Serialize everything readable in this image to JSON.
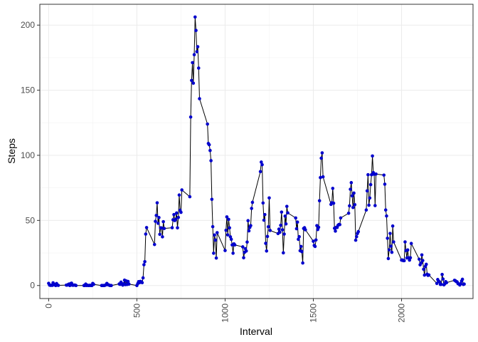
{
  "chart_data": {
    "type": "line",
    "title": "",
    "xlabel": "Interval",
    "ylabel": "Steps",
    "xlim": [
      -50,
      2405
    ],
    "ylim": [
      -10,
      216
    ],
    "x_ticks": [
      0,
      500,
      1000,
      1500,
      2000
    ],
    "y_ticks": [
      0,
      50,
      100,
      150,
      200
    ],
    "grid": true,
    "line_color": "#000000",
    "point_color": "#0000cd",
    "series": [
      {
        "x": [
          0,
          5,
          10,
          15,
          20,
          25,
          30,
          35,
          40,
          45,
          50,
          55,
          100,
          105,
          110,
          115,
          120,
          125,
          130,
          135,
          140,
          145,
          150,
          155,
          200,
          205,
          210,
          215,
          220,
          225,
          230,
          235,
          240,
          245,
          250,
          255,
          300,
          305,
          310,
          315,
          320,
          325,
          330,
          335,
          340,
          345,
          350,
          355,
          400,
          405,
          410,
          415,
          420,
          425,
          430,
          435,
          440,
          445,
          450,
          455,
          500,
          505,
          510,
          515,
          520,
          525,
          530,
          535,
          540,
          545,
          550,
          555,
          600,
          605,
          610,
          615,
          620,
          625,
          630,
          635,
          640,
          645,
          650,
          655,
          700,
          705,
          710,
          715,
          720,
          725,
          730,
          735,
          740,
          745,
          750,
          755,
          800,
          805,
          810,
          815,
          820,
          825,
          830,
          835,
          840,
          845,
          850,
          855,
          900,
          905,
          910,
          915,
          920,
          925,
          930,
          935,
          940,
          945,
          950,
          955,
          1000,
          1005,
          1010,
          1015,
          1020,
          1025,
          1030,
          1035,
          1040,
          1045,
          1050,
          1055,
          1100,
          1105,
          1110,
          1115,
          1120,
          1125,
          1130,
          1135,
          1140,
          1145,
          1150,
          1155,
          1200,
          1205,
          1210,
          1215,
          1220,
          1225,
          1230,
          1235,
          1240,
          1245,
          1250,
          1255,
          1300,
          1305,
          1310,
          1315,
          1320,
          1325,
          1330,
          1335,
          1340,
          1345,
          1350,
          1355,
          1400,
          1405,
          1410,
          1415,
          1420,
          1425,
          1430,
          1435,
          1440,
          1445,
          1450,
          1455,
          1500,
          1505,
          1510,
          1515,
          1520,
          1525,
          1530,
          1535,
          1540,
          1545,
          1550,
          1555,
          1600,
          1605,
          1610,
          1615,
          1620,
          1625,
          1630,
          1635,
          1640,
          1645,
          1650,
          1655,
          1700,
          1705,
          1710,
          1715,
          1720,
          1725,
          1730,
          1735,
          1740,
          1745,
          1750,
          1755,
          1800,
          1805,
          1810,
          1815,
          1820,
          1825,
          1830,
          1835,
          1840,
          1845,
          1850,
          1855,
          1900,
          1905,
          1910,
          1915,
          1920,
          1925,
          1930,
          1935,
          1940,
          1945,
          1950,
          1955,
          2000,
          2005,
          2010,
          2015,
          2020,
          2025,
          2030,
          2035,
          2040,
          2045,
          2050,
          2055,
          2100,
          2105,
          2110,
          2115,
          2120,
          2125,
          2130,
          2135,
          2140,
          2145,
          2150,
          2155,
          2200,
          2205,
          2210,
          2215,
          2220,
          2225,
          2230,
          2235,
          2240,
          2245,
          2250,
          2255,
          2300,
          2305,
          2310,
          2315,
          2320,
          2325,
          2330,
          2335,
          2340,
          2345,
          2350,
          2355
        ],
        "y": [
          1.7,
          0.3,
          0.1,
          0.2,
          0.1,
          2.1,
          0.5,
          0.9,
          0.0,
          1.5,
          0.3,
          0.1,
          0.3,
          0.3,
          0.7,
          1.1,
          0.0,
          1.5,
          1.8,
          0.2,
          0.2,
          0.4,
          0.3,
          0.0,
          0.0,
          0.0,
          1.1,
          0.0,
          0.2,
          0.0,
          0.0,
          0.2,
          0.0,
          0.0,
          1.6,
          0.9,
          0.0,
          0.0,
          0.0,
          0.0,
          0.2,
          0.6,
          1.6,
          0.6,
          0.5,
          0.1,
          0.0,
          0.0,
          1.2,
          0.9,
          2.6,
          1.1,
          0.3,
          1.4,
          4.1,
          0.7,
          3.5,
          0.8,
          3.1,
          1.1,
          0.0,
          1.5,
          3.0,
          2.2,
          3.2,
          2.9,
          2.2,
          5.9,
          16.0,
          18.3,
          39.5,
          44.5,
          31.5,
          49.3,
          53.8,
          63.5,
          47.8,
          52.2,
          39.3,
          44.3,
          44.2,
          37.4,
          49.0,
          43.8,
          44.4,
          50.5,
          54.5,
          49.9,
          50.9,
          55.7,
          44.3,
          52.3,
          69.5,
          57.8,
          56.2,
          73.4,
          68.2,
          129.4,
          157.5,
          171.2,
          155.4,
          177.3,
          206.2,
          195.9,
          179.6,
          183.4,
          167.0,
          143.5,
          124.0,
          109.1,
          108.1,
          103.7,
          95.9,
          66.2,
          45.2,
          24.8,
          38.8,
          34.9,
          21.1,
          40.6,
          26.9,
          42.4,
          52.7,
          38.9,
          50.8,
          44.3,
          37.4,
          35.5,
          31.2,
          24.8,
          32.0,
          31.2,
          29.7,
          21.3,
          25.5,
          28.3,
          26.5,
          33.4,
          49.8,
          42.0,
          44.6,
          46.0,
          59.2,
          63.9,
          87.5,
          94.8,
          92.8,
          63.4,
          50.2,
          54.5,
          32.4,
          26.5,
          37.7,
          45.1,
          67.3,
          42.3,
          39.9,
          43.3,
          40.9,
          46.2,
          56.4,
          42.8,
          25.1,
          39.5,
          53.3,
          47.3,
          60.8,
          55.8,
          51.9,
          43.6,
          48.7,
          35.5,
          37.5,
          26.7,
          30.0,
          26.0,
          17.3,
          43.8,
          44.4,
          42.8,
          34.0,
          30.8,
          30.0,
          35.0,
          46.0,
          43.0,
          44.7,
          65.1,
          82.9,
          97.8,
          101.9,
          83.5,
          62.3,
          63.6,
          74.6,
          63.2,
          44.0,
          41.8,
          44.7,
          44.6,
          46.3,
          46.9,
          46.8,
          51.9,
          55.5,
          61.2,
          73.9,
          79.0,
          68.9,
          59.9,
          71.0,
          62.1,
          34.8,
          37.5,
          39.9,
          41.4,
          58.0,
          72.7,
          85.1,
          61.7,
          67.2,
          77.5,
          85.1,
          99.5,
          86.7,
          85.4,
          61.4,
          85.6,
          84.8,
          77.8,
          58.0,
          53.4,
          36.3,
          20.7,
          27.4,
          40.0,
          30.2,
          25.5,
          45.7,
          33.5,
          19.5,
          19.6,
          19.1,
          19.1,
          33.5,
          26.8,
          21.2,
          27.3,
          21.3,
          19.5,
          21.3,
          32.3,
          20.2,
          15.9,
          17.2,
          23.5,
          19.2,
          12.5,
          8.0,
          14.7,
          16.3,
          8.7,
          7.8,
          8.1,
          1.6,
          4.6,
          3.3,
          2.8,
          0.8,
          0.9,
          8.5,
          5.0,
          0.5,
          1.3,
          3.0,
          2.2,
          4.0,
          3.7,
          3.0,
          2.8,
          1.4,
          1.2,
          0.4,
          1.4,
          3.4,
          4.8,
          0.8,
          1.1
        ]
      }
    ]
  }
}
